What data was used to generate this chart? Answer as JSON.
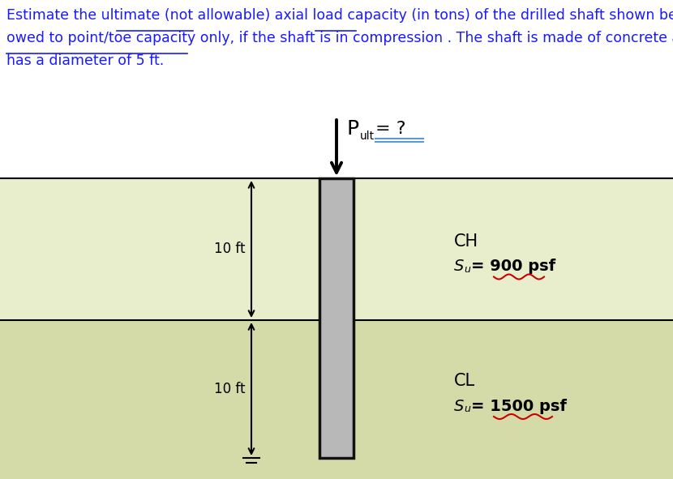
{
  "title_line1": "Estimate the ultimate (not allowable) axial load capacity (in tons) of the drilled shaft shown below",
  "title_line2": "owed to point/toe capacity only, if the shaft is in compression . The shaft is made of concrete and",
  "title_line3": "has a diameter of 5 ft.",
  "text_color": "#1a1aff",
  "underline_color": "#1a1aff",
  "bg_top": "#e8edcc",
  "bg_bot": "#d4dba8",
  "shaft_fill": "#b8b8b8",
  "shaft_edge": "#111111",
  "wavy_color": "#cc0000",
  "arrow_color": "#111111",
  "layer1_label": "CH",
  "layer1_formula": "S$_u$ = 900 psf",
  "layer2_label": "CL",
  "layer2_formula": "S$_u$ = 1500 psf",
  "dim1": "10 ft",
  "dim2": "10 ft",
  "fig_w": 8.3,
  "fig_h": 5.91
}
